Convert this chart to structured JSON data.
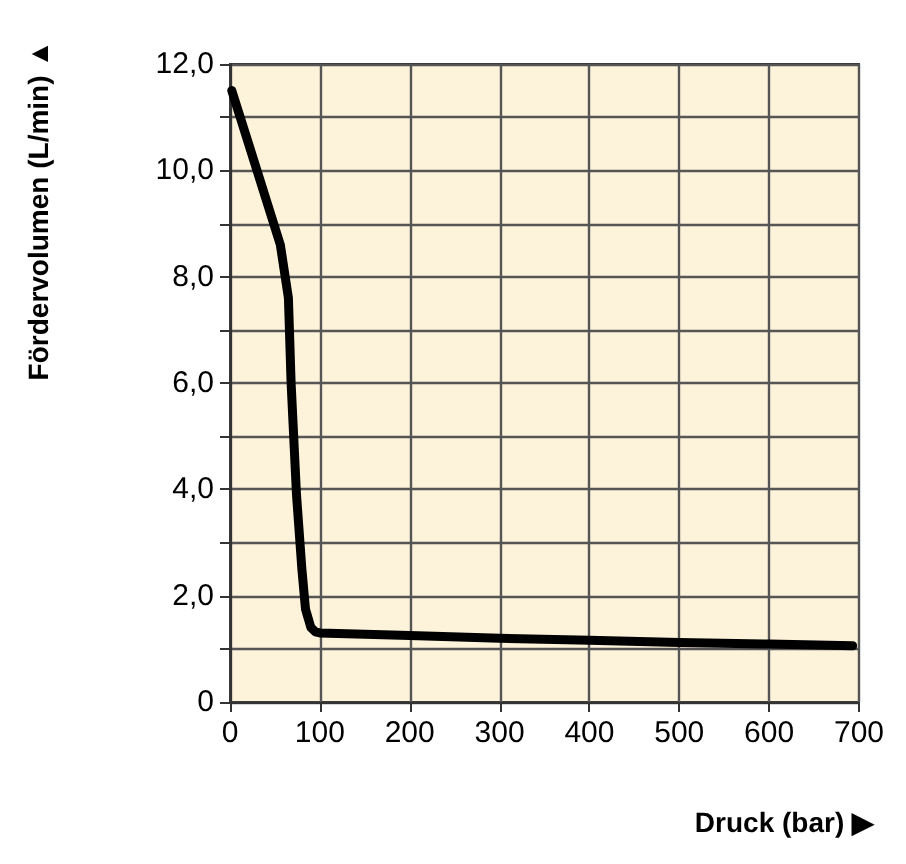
{
  "chart_data": {
    "type": "line",
    "xlabel": "Druck (bar) ▶",
    "ylabel": "Fördervolumen (L/min) ▲",
    "x": [
      2,
      30,
      56,
      65,
      68,
      74,
      80,
      84,
      90,
      95,
      100,
      200,
      300,
      400,
      500,
      600,
      693
    ],
    "series": [
      {
        "color": "#000000",
        "values": [
          11.5,
          10.0,
          8.6,
          7.6,
          6.0,
          3.9,
          2.5,
          1.75,
          1.4,
          1.32,
          1.3,
          1.25,
          1.2,
          1.16,
          1.12,
          1.09,
          1.06
        ]
      }
    ],
    "xlim": [
      0,
      700
    ],
    "xticks": [
      0,
      100,
      200,
      300,
      400,
      500,
      600,
      700
    ],
    "ylim": [
      0,
      12
    ],
    "yticks": [
      0,
      {
        "value": 1,
        "label": null
      },
      {
        "value": 2,
        "label": "2,0"
      },
      {
        "value": 3,
        "label": null
      },
      {
        "value": 4,
        "label": "4,0"
      },
      {
        "value": 5,
        "label": null
      },
      {
        "value": 6,
        "label": "6,0"
      },
      {
        "value": 7,
        "label": null
      },
      {
        "value": 8,
        "label": "8,0"
      },
      {
        "value": 9,
        "label": null
      },
      {
        "value": 10,
        "label": "10,0"
      },
      {
        "value": 11,
        "label": null
      },
      {
        "value": 12,
        "label": "12,0"
      }
    ],
    "grid": true,
    "marker": "none",
    "line_style": "solid"
  }
}
